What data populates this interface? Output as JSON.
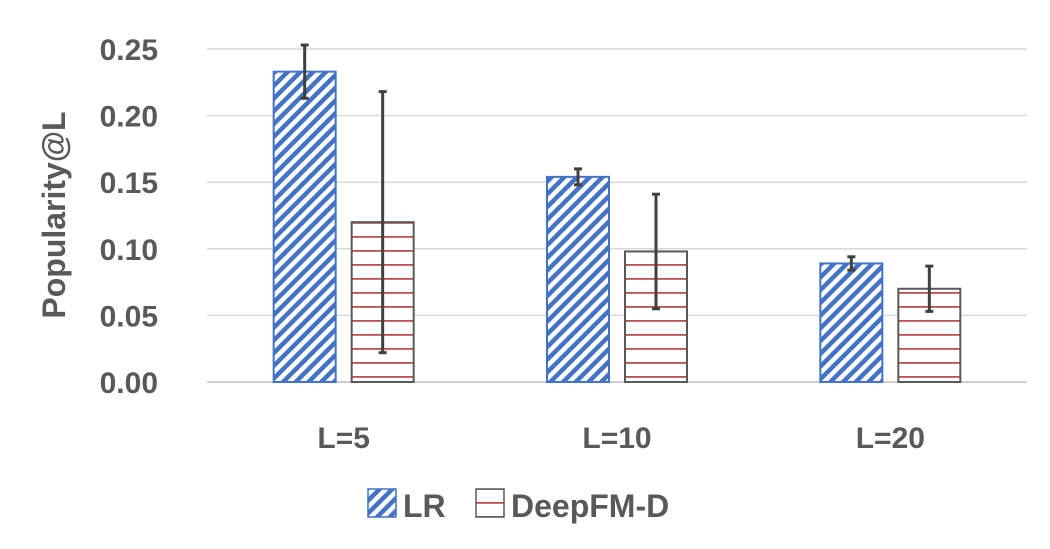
{
  "chart_data": {
    "type": "bar",
    "title": "",
    "xlabel": "",
    "ylabel": "Popularity@L",
    "categories": [
      "L=5",
      "L=10",
      "L=20"
    ],
    "ylim": [
      0,
      0.25
    ],
    "yticks": [
      "0.00",
      "0.05",
      "0.10",
      "0.15",
      "0.20",
      "0.25"
    ],
    "grid": true,
    "legend_position": "bottom",
    "series": [
      {
        "name": "LR",
        "values": [
          0.233,
          0.154,
          0.089
        ],
        "error_low": [
          0.213,
          0.148,
          0.084
        ],
        "error_high": [
          0.253,
          0.16,
          0.094
        ],
        "color": "#4472c4",
        "pattern": "diagonal-stripes"
      },
      {
        "name": "DeepFM-D",
        "values": [
          0.12,
          0.098,
          0.07
        ],
        "error_low": [
          0.022,
          0.055,
          0.053
        ],
        "error_high": [
          0.218,
          0.141,
          0.087
        ],
        "color": "#c0504d",
        "pattern": "horizontal-stripes"
      }
    ]
  }
}
